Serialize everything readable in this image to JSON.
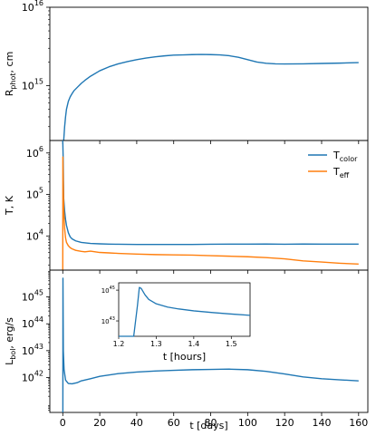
{
  "chart_data": [
    {
      "type": "line",
      "panel": "photospheric radius",
      "ylabel_main": "R",
      "ylabel_sub": "phot",
      "ylabel_suffix": ", cm",
      "yscale": "log",
      "ylim": [
        200000000000000,
        10000000000000000
      ],
      "yticks": [
        {
          "exp": 15,
          "label": "15"
        },
        {
          "exp": 16,
          "label": "16"
        }
      ],
      "xlim": [
        -7,
        165
      ],
      "series": [
        {
          "color": "#1f77b4",
          "x": [
            0.5,
            1,
            1.5,
            2,
            3,
            4,
            5,
            6,
            8,
            10,
            12,
            15,
            20,
            25,
            30,
            35,
            40,
            45,
            50,
            55,
            60,
            65,
            70,
            75,
            80,
            85,
            90,
            95,
            100,
            105,
            110,
            115,
            120,
            130,
            140,
            150,
            160
          ],
          "y": [
            200000000000000.0,
            300000000000000.0,
            400000000000000.0,
            500000000000000.0,
            630000000000000.0,
            720000000000000.0,
            790000000000000.0,
            860000000000000.0,
            960000000000000.0,
            1070000000000000.0,
            1170000000000000.0,
            1320000000000000.0,
            1550000000000000.0,
            1740000000000000.0,
            1900000000000000.0,
            2030000000000000.0,
            2150000000000000.0,
            2250000000000000.0,
            2330000000000000.0,
            2400000000000000.0,
            2450000000000000.0,
            2470000000000000.0,
            2490000000000000.0,
            2500000000000000.0,
            2490000000000000.0,
            2470000000000000.0,
            2410000000000000.0,
            2300000000000000.0,
            2150000000000000.0,
            2000000000000000.0,
            1930000000000000.0,
            1900000000000000.0,
            1890000000000000.0,
            1900000000000000.0,
            1920000000000000.0,
            1940000000000000.0,
            1970000000000000.0
          ]
        }
      ]
    },
    {
      "type": "line",
      "panel": "temperature",
      "ylabel": "T, K",
      "yscale": "log",
      "ylim": [
        1500,
        2000000
      ],
      "yticks": [
        {
          "exp": 4,
          "label": "4"
        },
        {
          "exp": 5,
          "label": "5"
        },
        {
          "exp": 6,
          "label": "6"
        }
      ],
      "xlim": [
        -7,
        165
      ],
      "legend_position": "top-right",
      "series": [
        {
          "name_main": "T",
          "name_sub": "color",
          "color": "#1f77b4",
          "x": [
            0,
            0.2,
            0.5,
            1,
            1.5,
            2,
            3,
            4,
            5,
            7,
            10,
            15,
            20,
            25,
            30,
            40,
            50,
            60,
            70,
            80,
            90,
            100,
            110,
            120,
            130,
            140,
            150,
            160
          ],
          "y": [
            2000000,
            800000,
            80000,
            40000,
            25000,
            18000,
            12000,
            9500,
            8500,
            7600,
            7000,
            6600,
            6450,
            6350,
            6300,
            6250,
            6250,
            6250,
            6250,
            6300,
            6350,
            6350,
            6400,
            6300,
            6400,
            6350,
            6350,
            6350
          ]
        },
        {
          "name_main": "T",
          "name_sub": "eff",
          "color": "#ff7f0e",
          "x": [
            0,
            0.05,
            0.2,
            0.5,
            1,
            1.5,
            2,
            3,
            4,
            5,
            7,
            10,
            12,
            15,
            20,
            25,
            30,
            40,
            50,
            60,
            70,
            80,
            90,
            100,
            110,
            120,
            130,
            140,
            150,
            160
          ],
          "y": [
            1500,
            800000,
            300000,
            45000,
            15000,
            9000,
            7000,
            5800,
            5200,
            4900,
            4500,
            4250,
            4150,
            4300,
            4000,
            3900,
            3800,
            3650,
            3550,
            3500,
            3450,
            3350,
            3250,
            3150,
            3000,
            2800,
            2500,
            2350,
            2200,
            2100
          ]
        }
      ]
    },
    {
      "type": "line",
      "panel": "bolometric luminosity",
      "ylabel_main": "L",
      "ylabel_sub": "bol",
      "ylabel_suffix": ", erg/s",
      "yscale": "log",
      "ylim": [
        5e+40,
        1e+46
      ],
      "yticks": [
        {
          "exp": 42,
          "label": "42"
        },
        {
          "exp": 43,
          "label": "43"
        },
        {
          "exp": 44,
          "label": "44"
        },
        {
          "exp": 45,
          "label": "45"
        }
      ],
      "xlabel": "t [days]",
      "xlim": [
        -7,
        165
      ],
      "xticks": [
        0,
        20,
        40,
        60,
        80,
        100,
        120,
        140,
        160
      ],
      "series": [
        {
          "color": "#1f77b4",
          "x": [
            0.05,
            0.1,
            0.3,
            0.7,
            1.5,
            3,
            5,
            8,
            10,
            15,
            20,
            30,
            40,
            50,
            60,
            70,
            80,
            90,
            100,
            110,
            120,
            130,
            140,
            150,
            160
          ],
          "y": [
            5e+40,
            5e+45,
            1e+43,
            2e+42,
            8e+41,
            6e+41,
            5.8e+41,
            6.5e+41,
            7.5e+41,
            9e+41,
            1.1e+42,
            1.4e+42,
            1.6e+42,
            1.75e+42,
            1.85e+42,
            1.95e+42,
            2e+42,
            2.05e+42,
            1.95e+42,
            1.7e+42,
            1.35e+42,
            1.05e+42,
            9e+41,
            8.2e+41,
            7.5e+41
          ]
        }
      ],
      "inset": {
        "xlabel": "t [hours]",
        "xlim": [
          1.2,
          1.55
        ],
        "xticks": [
          1.2,
          1.3,
          1.4,
          1.5
        ],
        "yscale": "log",
        "ylim": [
          1e+42,
          3e+45
        ],
        "yticks": [
          {
            "exp": 43,
            "label": "43"
          },
          {
            "exp": 45,
            "label": "45"
          }
        ],
        "series": [
          {
            "color": "#1f77b4",
            "x": [
              1.2,
              1.24,
              1.245,
              1.25,
              1.255,
              1.26,
              1.27,
              1.28,
              1.3,
              1.33,
              1.36,
              1.4,
              1.45,
              1.5,
              1.55
            ],
            "y": [
              1e+42,
              1e+42,
              1e+43,
              1e+44,
              1.5e+45,
              1.3e+45,
              5e+44,
              2.5e+44,
              1.3e+44,
              8e+43,
              6e+43,
              4.5e+43,
              3.5e+43,
              2.8e+43,
              2.3e+43
            ]
          }
        ]
      }
    }
  ]
}
